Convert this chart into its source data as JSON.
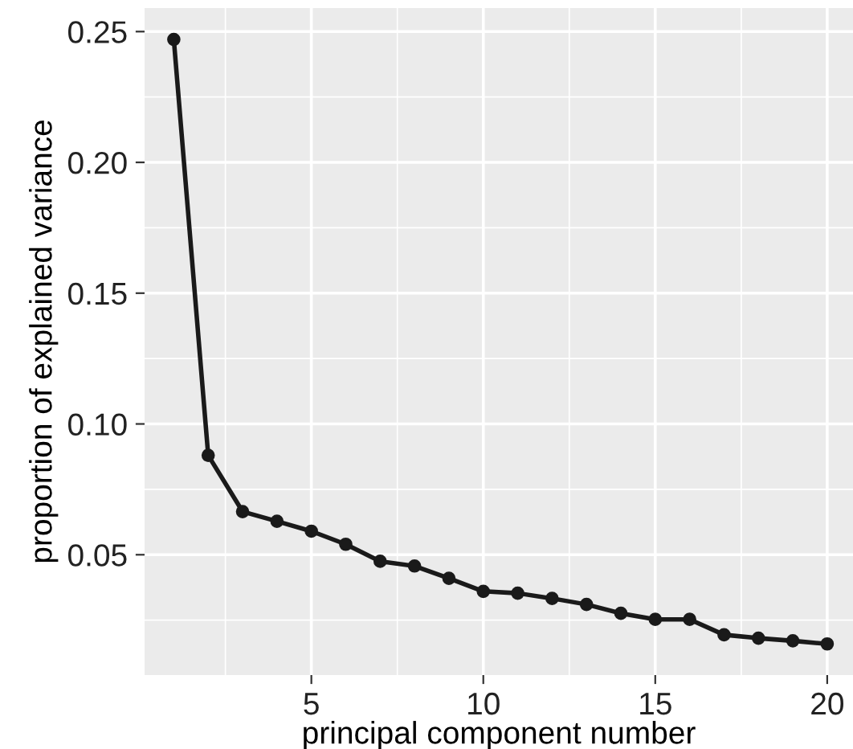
{
  "chart_data": {
    "type": "line",
    "xlabel": "principal component number",
    "ylabel": "proportion of explained variance",
    "x": [
      1,
      2,
      3,
      4,
      5,
      6,
      7,
      8,
      9,
      10,
      11,
      12,
      13,
      14,
      15,
      16,
      17,
      18,
      19,
      20
    ],
    "series": [
      {
        "color": "#1a1a1a",
        "values": [
          0.247,
          0.088,
          0.0665,
          0.0628,
          0.059,
          0.054,
          0.0475,
          0.0457,
          0.041,
          0.036,
          0.0353,
          0.0333,
          0.031,
          0.0276,
          0.0253,
          0.0253,
          0.0194,
          0.0181,
          0.0171,
          0.0159
        ]
      }
    ],
    "xlim": [
      0.15,
      20.75
    ],
    "ylim": [
      0.004,
      0.259
    ],
    "xticks": [
      5,
      10,
      15,
      20
    ],
    "yticks": [
      {
        "value": 0.05,
        "label": "0.05"
      },
      {
        "value": 0.1,
        "label": "0.10"
      },
      {
        "value": 0.15,
        "label": "0.15"
      },
      {
        "value": 0.2,
        "label": "0.20"
      },
      {
        "value": 0.25,
        "label": "0.25"
      }
    ],
    "grid": true,
    "marker": "circle",
    "line_style": "solid"
  }
}
